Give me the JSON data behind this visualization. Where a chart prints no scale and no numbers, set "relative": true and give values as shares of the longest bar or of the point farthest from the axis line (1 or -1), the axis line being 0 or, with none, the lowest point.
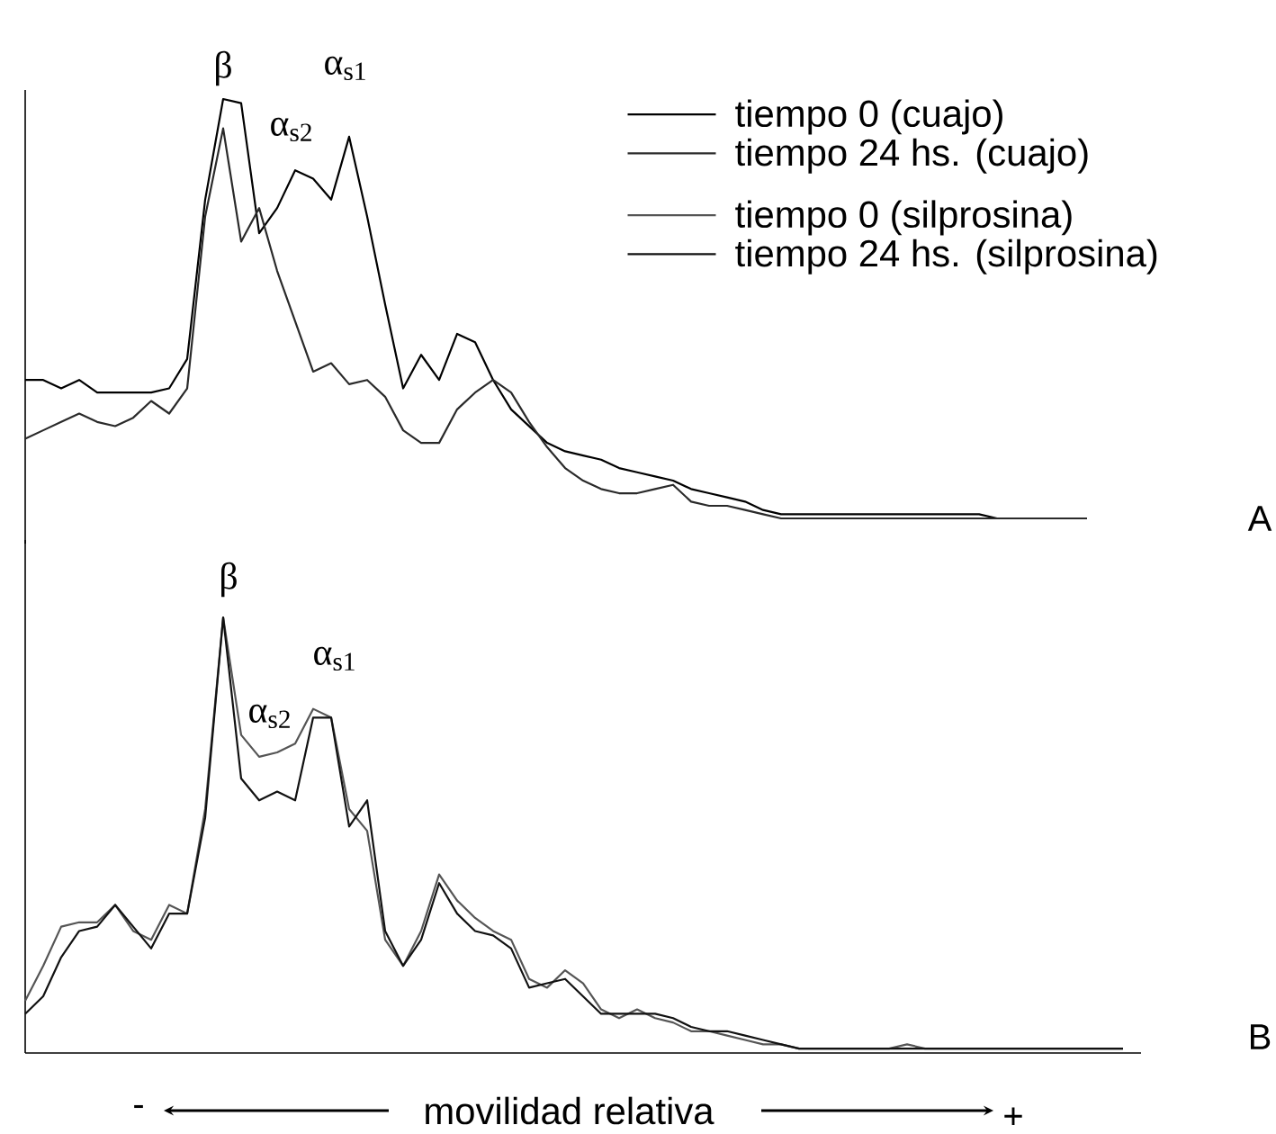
{
  "chart_data": [
    {
      "type": "line",
      "relative": true,
      "legend": "top right",
      "categories": [
        null,
        null,
        null,
        null,
        null,
        null,
        null,
        null,
        null,
        null,
        null,
        null,
        null,
        null,
        null,
        null,
        null,
        null,
        null,
        null,
        null,
        null,
        null,
        null,
        null,
        null,
        null,
        null,
        null,
        null,
        null,
        null,
        null,
        null,
        null,
        null,
        null,
        null,
        null,
        null,
        null,
        null,
        null,
        null,
        null,
        null,
        null,
        null,
        null,
        null,
        null,
        null,
        null,
        null,
        null,
        null,
        null,
        null,
        null,
        null,
        null,
        null
      ],
      "series": [
        {
          "name": "tiempo 0 (cuajo)",
          "color": "#000000",
          "values": [
            0.33,
            0.33,
            0.31,
            0.33,
            0.3,
            0.3,
            0.3,
            0.3,
            0.31,
            0.38,
            0.76,
            1.0,
            0.99,
            0.68,
            0.74,
            0.83,
            0.81,
            0.76,
            0.91,
            0.72,
            0.51,
            0.31,
            0.39,
            0.33,
            0.44,
            0.42,
            0.33,
            0.26,
            0.22,
            0.18,
            0.16,
            0.15,
            0.14,
            0.12,
            0.11,
            0.1,
            0.09,
            0.07,
            0.06,
            0.05,
            0.04,
            0.02,
            0.01,
            0.01,
            0.01,
            0.01,
            0.01,
            0.01,
            0.01,
            0.01,
            0.01,
            0.01,
            0.01,
            0.01,
            0,
            0,
            0,
            0,
            0,
            0,
            null,
            null
          ]
        },
        {
          "name": "tiempo 24 hs. (cuajo)",
          "color": "#2a2a2a",
          "values": [
            0.19,
            0.21,
            0.23,
            0.25,
            0.23,
            0.22,
            0.24,
            0.28,
            0.25,
            0.31,
            0.72,
            0.93,
            0.66,
            0.74,
            0.59,
            0.47,
            0.35,
            0.37,
            0.32,
            0.33,
            0.29,
            0.21,
            0.18,
            0.18,
            0.26,
            0.3,
            0.33,
            0.3,
            0.23,
            0.17,
            0.12,
            0.09,
            0.07,
            0.06,
            0.06,
            0.07,
            0.08,
            0.04,
            0.03,
            0.03,
            0.02,
            0.01,
            0,
            0,
            0,
            0,
            0,
            0,
            0,
            0,
            0,
            0,
            0,
            0,
            0,
            0,
            0,
            0,
            0,
            0,
            null,
            null
          ]
        }
      ],
      "annotations": [
        "β",
        "α$_{s2}$",
        "α$_{s1}$",
        "A"
      ]
    },
    {
      "type": "line",
      "relative": true,
      "legend": "top right",
      "xlabel": "movilidad relativa",
      "categories": [
        null,
        null,
        null,
        null,
        null,
        null,
        null,
        null,
        null,
        null,
        null,
        null,
        null,
        null,
        null,
        null,
        null,
        null,
        null,
        null,
        null,
        null,
        null,
        null,
        null,
        null,
        null,
        null,
        null,
        null,
        null,
        null,
        null,
        null,
        null,
        null,
        null,
        null,
        null,
        null,
        null,
        null,
        null,
        null,
        null,
        null,
        null,
        null,
        null,
        null,
        null,
        null,
        null,
        null,
        null,
        null,
        null,
        null,
        null,
        null,
        null,
        null
      ],
      "series": [
        {
          "name": "tiempo 0 (silprosina)",
          "color": "#555555",
          "values": [
            0.12,
            0.2,
            0.29,
            0.3,
            0.3,
            0.34,
            0.28,
            0.26,
            0.34,
            0.32,
            0.56,
            1.0,
            0.73,
            0.68,
            0.69,
            0.71,
            0.79,
            0.77,
            0.56,
            0.51,
            0.26,
            0.2,
            0.28,
            0.41,
            0.35,
            0.31,
            0.28,
            0.26,
            0.17,
            0.15,
            0.19,
            0.16,
            0.1,
            0.08,
            0.1,
            0.08,
            0.07,
            0.05,
            0.05,
            0.04,
            0.03,
            0.02,
            0.02,
            0.01,
            0.01,
            0.01,
            0.01,
            0.01,
            0.01,
            0.02,
            0.01,
            0.01,
            0.01,
            0.01,
            0.01,
            0.01,
            0.01,
            0.01,
            0.01,
            0.01,
            0.01,
            0.01
          ]
        },
        {
          "name": "tiempo 24 hs. (silprosina)",
          "color": "#111111",
          "values": [
            0.09,
            0.13,
            0.22,
            0.28,
            0.29,
            0.34,
            0.29,
            0.24,
            0.32,
            0.32,
            0.54,
            1.0,
            0.63,
            0.58,
            0.6,
            0.58,
            0.77,
            0.77,
            0.52,
            0.58,
            0.28,
            0.2,
            0.26,
            0.39,
            0.32,
            0.28,
            0.27,
            0.24,
            0.15,
            0.16,
            0.17,
            0.13,
            0.09,
            0.09,
            0.09,
            0.09,
            0.08,
            0.06,
            0.05,
            0.05,
            0.04,
            0.03,
            0.02,
            0.01,
            0.01,
            0.01,
            0.01,
            0.01,
            0.01,
            0.01,
            0.01,
            0.01,
            0.01,
            0.01,
            0.01,
            0.01,
            0.01,
            0.01,
            0.01,
            0.01,
            0.01,
            0.01
          ]
        }
      ],
      "annotations": [
        "β",
        "α$_{s2}$",
        "α$_{s1}$",
        "B",
        "-",
        "+"
      ]
    }
  ]
}
